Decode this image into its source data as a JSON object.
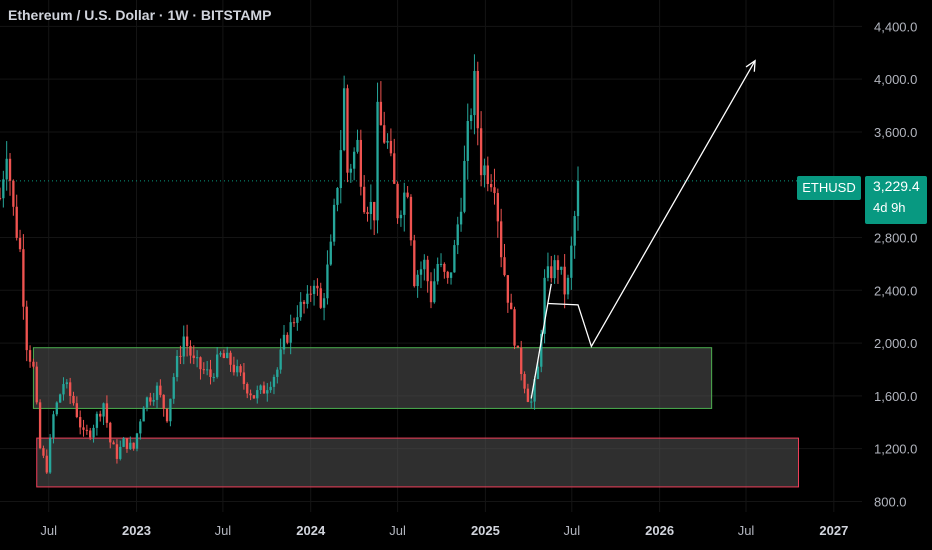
{
  "header": {
    "title": "Ethereum / U.S. Dollar · 1W · BITSTAMP"
  },
  "price_label": {
    "symbol": "ETHUSD",
    "price": "3,229.4",
    "countdown": "4d 9h"
  },
  "colors": {
    "background": "#000000",
    "up": "#089981",
    "down": "#f23645",
    "candle_up": "#26a69a",
    "candle_down": "#ef5350",
    "support_zone_border": "#4caf50",
    "lower_zone_border": "#f23f5a",
    "zone_fill": "#555555",
    "projection": "#ffffff",
    "axis_text": "#b2b5be"
  },
  "chart_data": {
    "type": "candlestick",
    "title": "Ethereum / U.S. Dollar · 1W · BITSTAMP",
    "xlabel": "",
    "ylabel": "",
    "ylim": [
      720,
      4600
    ],
    "xlim": [
      "2022-03-21",
      "2027-03-01"
    ],
    "grid": true,
    "y_ticks": [
      "4,400.0",
      "4,000.0",
      "3,600.0",
      "2,800.0",
      "2,400.0",
      "2,000.0",
      "1,600.0",
      "1,200.0",
      "800.0"
    ],
    "y_tick_values": [
      4400,
      4000,
      3600,
      2800,
      2400,
      2000,
      1600,
      1200,
      800
    ],
    "x_ticks": [
      {
        "label": "Jul",
        "date": "2022-07-01",
        "bold": false
      },
      {
        "label": "2023",
        "date": "2023-01-01",
        "bold": true
      },
      {
        "label": "Jul",
        "date": "2023-07-01",
        "bold": false
      },
      {
        "label": "2024",
        "date": "2024-01-01",
        "bold": true
      },
      {
        "label": "Jul",
        "date": "2024-07-01",
        "bold": false
      },
      {
        "label": "2025",
        "date": "2025-01-01",
        "bold": true
      },
      {
        "label": "Jul",
        "date": "2025-07-01",
        "bold": false
      },
      {
        "label": "2026",
        "date": "2026-01-01",
        "bold": true
      },
      {
        "label": "Jul",
        "date": "2026-07-01",
        "bold": false
      },
      {
        "label": "2027",
        "date": "2027-01-01",
        "bold": true
      }
    ],
    "last_price": 3229.4,
    "price_path": [
      [
        "2022-03-21",
        3100
      ],
      [
        "2022-04-04",
        3500
      ],
      [
        "2022-04-18",
        3000
      ],
      [
        "2022-05-02",
        2700
      ],
      [
        "2022-05-16",
        2000
      ],
      [
        "2022-05-30",
        1800
      ],
      [
        "2022-06-13",
        1200
      ],
      [
        "2022-06-27",
        1050
      ],
      [
        "2022-07-11",
        1450
      ],
      [
        "2022-08-01",
        1700
      ],
      [
        "2022-08-22",
        1550
      ],
      [
        "2022-09-12",
        1300
      ],
      [
        "2022-09-26",
        1330
      ],
      [
        "2022-10-24",
        1550
      ],
      [
        "2022-11-07",
        1250
      ],
      [
        "2022-11-21",
        1150
      ],
      [
        "2022-12-05",
        1250
      ],
      [
        "2022-12-26",
        1200
      ],
      [
        "2023-01-16",
        1550
      ],
      [
        "2023-02-13",
        1650
      ],
      [
        "2023-03-06",
        1450
      ],
      [
        "2023-03-20",
        1750
      ],
      [
        "2023-04-10",
        2050
      ],
      [
        "2023-05-01",
        1850
      ],
      [
        "2023-06-05",
        1750
      ],
      [
        "2023-06-26",
        1900
      ],
      [
        "2023-07-17",
        1850
      ],
      [
        "2023-08-14",
        1700
      ],
      [
        "2023-09-04",
        1600
      ],
      [
        "2023-09-25",
        1650
      ],
      [
        "2023-10-23",
        1800
      ],
      [
        "2023-11-06",
        2000
      ],
      [
        "2023-12-04",
        2250
      ],
      [
        "2023-12-25",
        2300
      ],
      [
        "2024-01-08",
        2500
      ],
      [
        "2024-01-22",
        2250
      ],
      [
        "2024-02-12",
        2700
      ],
      [
        "2024-03-04",
        3500
      ],
      [
        "2024-03-11",
        3900
      ],
      [
        "2024-03-18",
        3300
      ],
      [
        "2024-04-08",
        3500
      ],
      [
        "2024-04-22",
        3100
      ],
      [
        "2024-05-13",
        3000
      ],
      [
        "2024-05-20",
        3700
      ],
      [
        "2024-06-10",
        3500
      ],
      [
        "2024-07-01",
        3000
      ],
      [
        "2024-07-22",
        3200
      ],
      [
        "2024-08-05",
        2500
      ],
      [
        "2024-08-26",
        2600
      ],
      [
        "2024-09-09",
        2350
      ],
      [
        "2024-09-23",
        2600
      ],
      [
        "2024-10-14",
        2450
      ],
      [
        "2024-10-28",
        2700
      ],
      [
        "2024-11-11",
        3100
      ],
      [
        "2024-12-02",
        3800
      ],
      [
        "2024-12-09",
        3950
      ],
      [
        "2024-12-23",
        3350
      ],
      [
        "2025-01-06",
        3300
      ],
      [
        "2025-01-20",
        3250
      ],
      [
        "2025-02-03",
        2700
      ],
      [
        "2025-02-24",
        2200
      ],
      [
        "2025-03-10",
        1900
      ],
      [
        "2025-03-31",
        1600
      ],
      [
        "2025-04-07",
        1550
      ],
      [
        "2025-04-21",
        1800
      ],
      [
        "2025-05-05",
        2450
      ],
      [
        "2025-05-19",
        2550
      ],
      [
        "2025-06-02",
        2600
      ],
      [
        "2025-06-16",
        2400
      ],
      [
        "2025-06-23",
        2450
      ],
      [
        "2025-07-07",
        2950
      ],
      [
        "2025-07-14",
        3229.4
      ]
    ],
    "zones": [
      {
        "name": "support-zone",
        "from": "2022-05-30",
        "to": "2026-04-20",
        "low": 1505,
        "high": 1965,
        "border": "#4caf50"
      },
      {
        "name": "lower-zone",
        "from": "2022-06-06",
        "to": "2026-10-19",
        "low": 910,
        "high": 1280,
        "border": "#f23f5a"
      }
    ],
    "projection": [
      [
        "2025-05-12",
        2300
      ],
      [
        "2025-07-14",
        2290
      ],
      [
        "2025-08-11",
        1975
      ],
      [
        "2026-07-20",
        4140
      ]
    ],
    "drawn_line": [
      [
        "2025-04-07",
        1580
      ],
      [
        "2025-05-19",
        2450
      ]
    ]
  }
}
